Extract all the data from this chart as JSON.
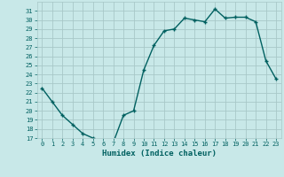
{
  "x": [
    0,
    1,
    2,
    3,
    4,
    5,
    6,
    7,
    8,
    9,
    10,
    11,
    12,
    13,
    14,
    15,
    16,
    17,
    18,
    19,
    20,
    21,
    22,
    23
  ],
  "y": [
    22.5,
    21.0,
    19.5,
    18.5,
    17.5,
    17.0,
    16.7,
    16.5,
    19.5,
    20.0,
    24.5,
    27.2,
    28.8,
    29.0,
    30.2,
    30.0,
    29.8,
    31.2,
    30.2,
    30.3,
    30.3,
    29.8,
    25.5,
    23.5
  ],
  "xlabel": "Humidex (Indice chaleur)",
  "xlim": [
    -0.5,
    23.5
  ],
  "ylim": [
    17,
    32
  ],
  "yticks": [
    17,
    18,
    19,
    20,
    21,
    22,
    23,
    24,
    25,
    26,
    27,
    28,
    29,
    30,
    31
  ],
  "xticks": [
    0,
    1,
    2,
    3,
    4,
    5,
    6,
    7,
    8,
    9,
    10,
    11,
    12,
    13,
    14,
    15,
    16,
    17,
    18,
    19,
    20,
    21,
    22,
    23
  ],
  "line_color": "#006060",
  "bg_color": "#c8e8e8",
  "grid_color": "#a8c8c8",
  "label_color": "#006060",
  "tick_color": "#006060"
}
